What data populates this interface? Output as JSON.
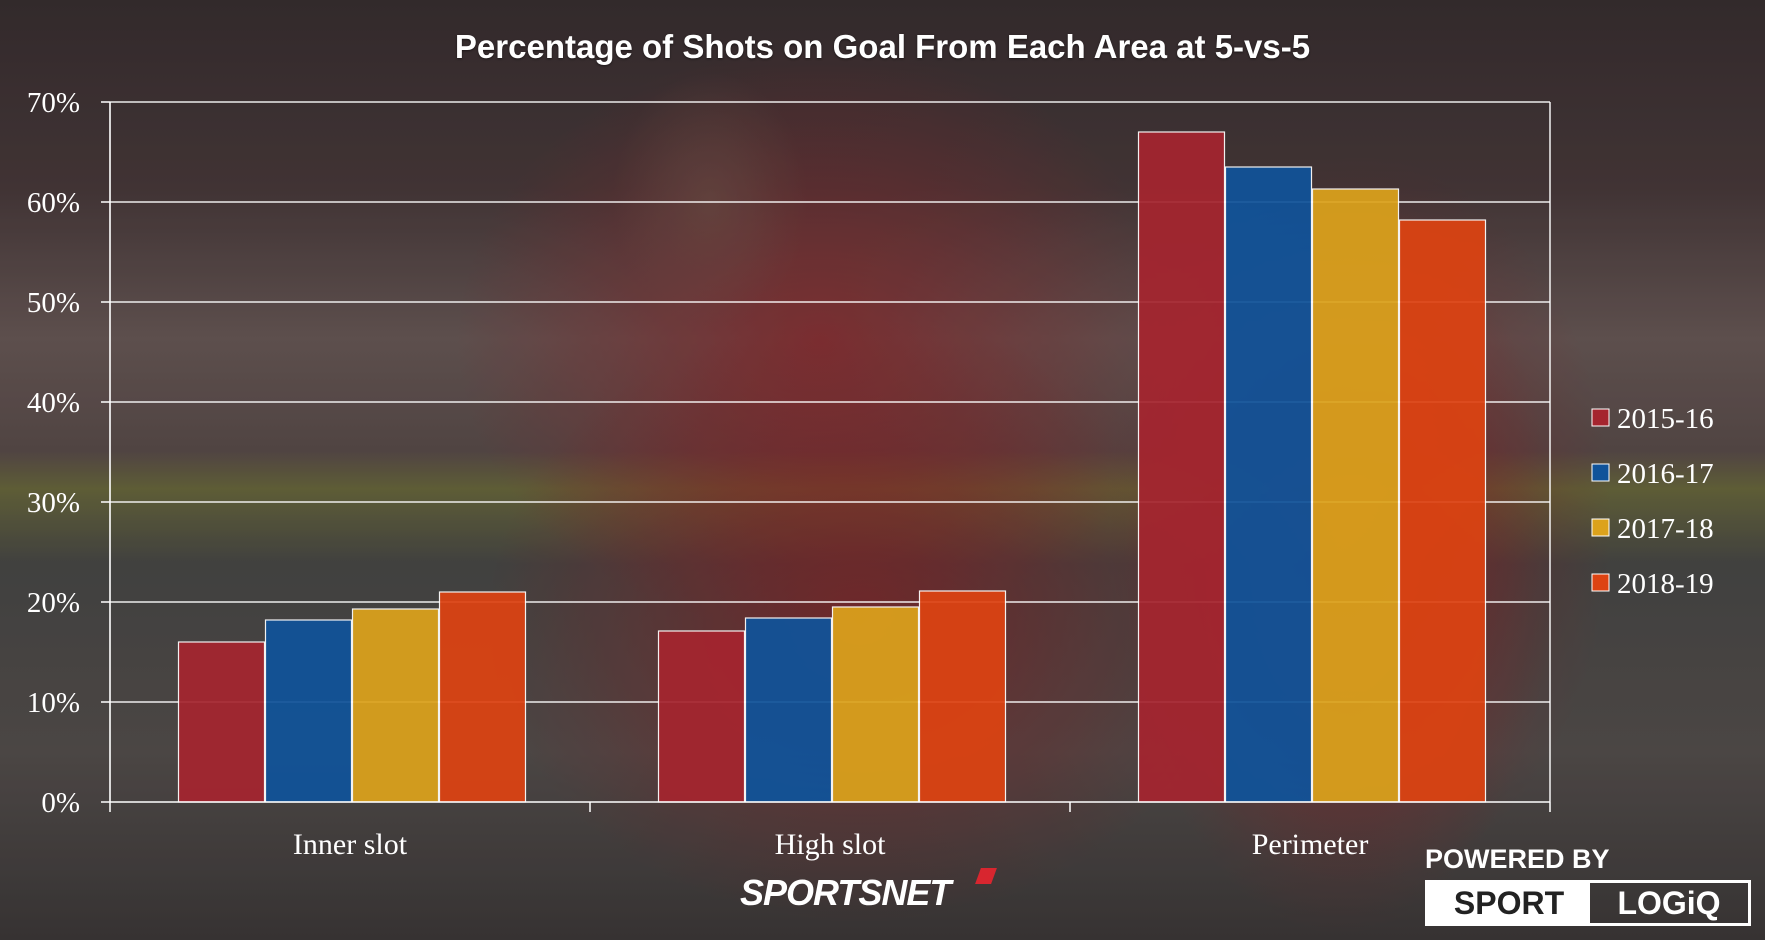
{
  "brand": {
    "sportsnet": "SPORTSNET",
    "powered_by": "POWERED BY",
    "sport": "SPORT",
    "logiq": "LOGiQ"
  },
  "chart_data": {
    "type": "bar",
    "title": "Percentage of Shots on Goal From Each Area at 5-vs-5",
    "xlabel": "",
    "ylabel": "",
    "categories": [
      "Inner slot",
      "High slot",
      "Perimeter"
    ],
    "series": [
      {
        "name": "2015-16",
        "color": "#a5252f",
        "values": [
          16.0,
          17.1,
          67.0
        ]
      },
      {
        "name": "2016-17",
        "color": "#10539a",
        "values": [
          18.2,
          18.4,
          63.5
        ]
      },
      {
        "name": "2017-18",
        "color": "#dca21c",
        "values": [
          19.3,
          19.5,
          61.3
        ]
      },
      {
        "name": "2018-19",
        "color": "#dd4312",
        "values": [
          21.0,
          21.1,
          58.2
        ]
      }
    ],
    "ylim": [
      0,
      70
    ],
    "yticks": [
      0,
      10,
      20,
      30,
      40,
      50,
      60,
      70
    ],
    "ytick_labels": [
      "0%",
      "10%",
      "20%",
      "30%",
      "40%",
      "50%",
      "60%",
      "70%"
    ],
    "grid": true,
    "legend": "right"
  }
}
